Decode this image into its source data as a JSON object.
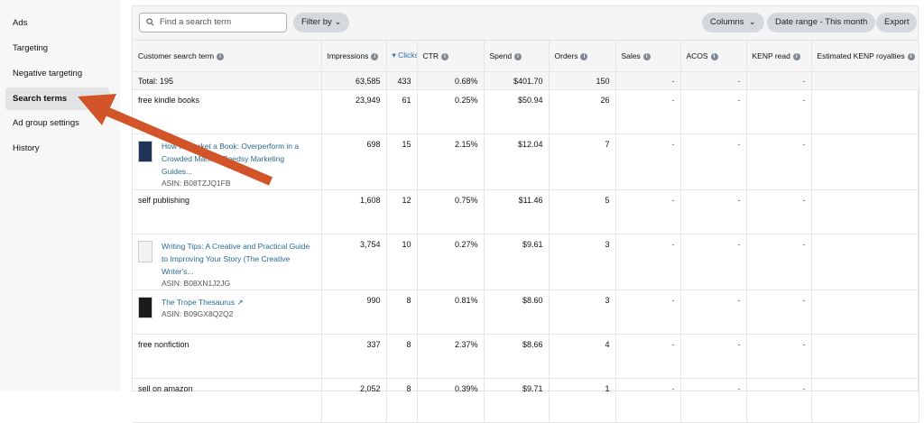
{
  "sidebar": {
    "items": [
      {
        "label": "Ads"
      },
      {
        "label": "Targeting"
      },
      {
        "label": "Negative targeting"
      },
      {
        "label": "Search terms",
        "active": true
      },
      {
        "label": "Ad group settings"
      },
      {
        "label": "History"
      }
    ]
  },
  "toolbar": {
    "search_placeholder": "Find a search term",
    "filter_label": "Filter by",
    "columns_label": "Columns",
    "date_range_label": "Date range - This month",
    "export_label": "Export"
  },
  "table": {
    "columns": [
      {
        "label": "Customer search term",
        "info": true
      },
      {
        "label": "Impressions",
        "info": true
      },
      {
        "label": "Clicks",
        "sorted": "desc"
      },
      {
        "label": "CTR",
        "info": true
      },
      {
        "label": "Spend",
        "info": true
      },
      {
        "label": "Orders",
        "info": true
      },
      {
        "label": "Sales",
        "info": true
      },
      {
        "label": "ACOS",
        "info": true
      },
      {
        "label": "KENP read",
        "info": true
      },
      {
        "label": "Estimated KENP royalties",
        "info": true
      }
    ],
    "total": {
      "term": "Total: 195",
      "impressions": "63,585",
      "clicks": "433",
      "ctr": "0.68%",
      "spend": "$401.70",
      "orders": "150",
      "sales": "-",
      "acos": "-",
      "kenp": "-",
      "royalties": ""
    },
    "rows": [
      {
        "term": "free kindle books",
        "impressions": "23,949",
        "clicks": "61",
        "ctr": "0.25%",
        "spend": "$50.94",
        "orders": "26",
        "sales": "-",
        "acos": "-",
        "kenp": "-",
        "royalties": ""
      },
      {
        "book": true,
        "title": "How to Market a Book: Overperform in a Crowded Market (Reedsy Marketing Guides...",
        "asin": "ASIN: B08TZJQ1FB",
        "cover_color": "#1d3457",
        "impressions": "698",
        "clicks": "15",
        "ctr": "2.15%",
        "spend": "$12.04",
        "orders": "7",
        "sales": "-",
        "acos": "-",
        "kenp": "-",
        "royalties": ""
      },
      {
        "term": "self publishing",
        "impressions": "1,608",
        "clicks": "12",
        "ctr": "0.75%",
        "spend": "$11.46",
        "orders": "5",
        "sales": "-",
        "acos": "-",
        "kenp": "-",
        "royalties": ""
      },
      {
        "book": true,
        "title": "Writing Tips: A Creative and Practical Guide to Improving Your Story (The Creative Writer's...",
        "asin": "ASIN: B08XN1J2JG",
        "cover_color": "#f2f2f2",
        "impressions": "3,754",
        "clicks": "10",
        "ctr": "0.27%",
        "spend": "$9.61",
        "orders": "3",
        "sales": "-",
        "acos": "-",
        "kenp": "-",
        "royalties": ""
      },
      {
        "book": true,
        "title": "The Trope Thesaurus",
        "external_link": true,
        "asin": "ASIN: B09GX8Q2Q2",
        "cover_color": "#1a1a1a",
        "impressions": "990",
        "clicks": "8",
        "ctr": "0.81%",
        "spend": "$8.60",
        "orders": "3",
        "sales": "-",
        "acos": "-",
        "kenp": "-",
        "royalties": ""
      },
      {
        "term": "free nonfiction",
        "impressions": "337",
        "clicks": "8",
        "ctr": "2.37%",
        "spend": "$8.66",
        "orders": "4",
        "sales": "-",
        "acos": "-",
        "kenp": "-",
        "royalties": ""
      },
      {
        "term": "sell on amazon",
        "impressions": "2,052",
        "clicks": "8",
        "ctr": "0.39%",
        "spend": "$9.71",
        "orders": "1",
        "sales": "-",
        "acos": "-",
        "kenp": "-",
        "royalties": ""
      }
    ]
  },
  "annotation": {
    "arrow_color": "#d2552a"
  }
}
